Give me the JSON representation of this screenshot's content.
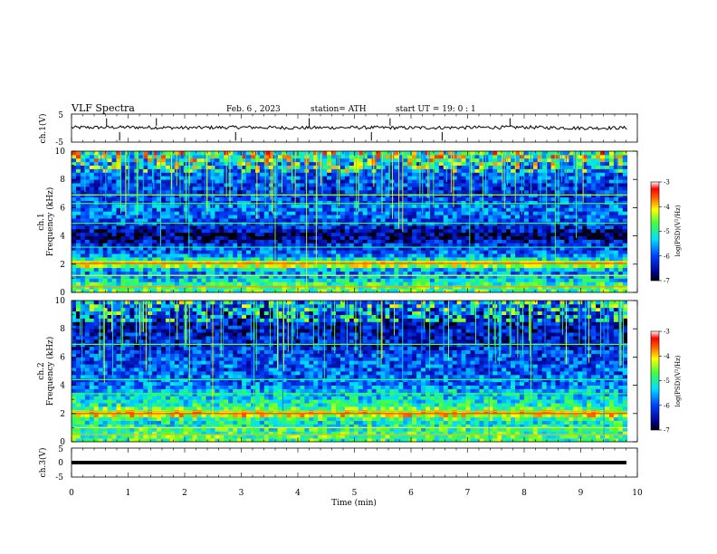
{
  "header": {
    "title": "VLF  Spectra",
    "date": "Feb. 6  , 2023",
    "station": "station= ATH",
    "start": "start  UT  =   19: 0   : 1"
  },
  "axes": {
    "ch1_label": "ch.1(V)",
    "ch1_ticks": [
      "5",
      "-5"
    ],
    "spec1_label_line1": "ch.1",
    "spec1_label_line2": "Frequency  (kHz)",
    "spec2_label_line1": "ch.2",
    "spec2_label_line2": "Frequency  (kHz)",
    "freq_ticks": [
      "0",
      "2",
      "4",
      "6",
      "8",
      "10"
    ],
    "ch3_label": "ch.3(V)",
    "ch3_ticks": [
      "5",
      "0",
      "-5"
    ],
    "time_ticks": [
      "0",
      "1",
      "2",
      "3",
      "4",
      "5",
      "6",
      "7",
      "8",
      "9",
      "10"
    ],
    "xlabel": "Time  (min)",
    "colorbar_label": "log(PSD)(V²/Hz)",
    "colorbar_ticks": [
      "-3",
      "-4",
      "-5",
      "-6",
      "-7"
    ]
  },
  "chart_data": [
    {
      "type": "line",
      "panel": "ch.1 waveform",
      "ylabel": "ch.1(V)",
      "ylim": [
        -5,
        5
      ],
      "xlim": [
        0,
        10
      ],
      "x": [
        0,
        1,
        2,
        3,
        4,
        5,
        6,
        7,
        8,
        9,
        9.8
      ],
      "y": [
        0.2,
        0.3,
        0.1,
        0.3,
        0.1,
        0.2,
        0.1,
        0.2,
        0.3,
        0.0,
        0.1
      ]
    },
    {
      "type": "heatmap",
      "panel": "ch.1 spectrogram",
      "ylabel": "Frequency  (kHz)",
      "xlim": [
        0,
        10
      ],
      "ylim": [
        0,
        10
      ],
      "colorbar_range": [
        -7,
        -3
      ],
      "freq_bands_kHz": [
        0.5,
        1.0,
        1.5,
        2.0,
        2.5,
        3.0,
        3.5,
        4.0,
        5.0,
        6.0,
        7.0,
        8.0,
        9.0,
        9.75
      ],
      "log_psd": [
        -4.8,
        -5.4,
        -5.8,
        -4.0,
        -5.6,
        -6.0,
        -6.2,
        -6.8,
        -6.0,
        -5.8,
        -6.2,
        -6.0,
        -5.8,
        -5.2
      ]
    },
    {
      "type": "heatmap",
      "panel": "ch.2 spectrogram",
      "ylabel": "Frequency  (kHz)",
      "xlim": [
        0,
        10
      ],
      "ylim": [
        0,
        10
      ],
      "colorbar_range": [
        -7,
        -3
      ],
      "freq_bands_kHz": [
        0.5,
        1.0,
        1.5,
        2.0,
        2.5,
        3.0,
        3.5,
        4.0,
        5.0,
        6.0,
        7.0,
        8.0,
        9.0,
        9.75
      ],
      "log_psd": [
        -4.8,
        -5.0,
        -5.2,
        -3.9,
        -5.0,
        -5.2,
        -5.4,
        -5.8,
        -5.9,
        -6.0,
        -6.3,
        -6.4,
        -6.3,
        -6.0
      ]
    },
    {
      "type": "line",
      "panel": "ch.3 waveform",
      "ylabel": "ch.3(V)",
      "ylim": [
        -5,
        5
      ],
      "xlim": [
        0,
        10
      ],
      "x": [
        0,
        9.8
      ],
      "y": [
        0,
        0
      ]
    }
  ]
}
